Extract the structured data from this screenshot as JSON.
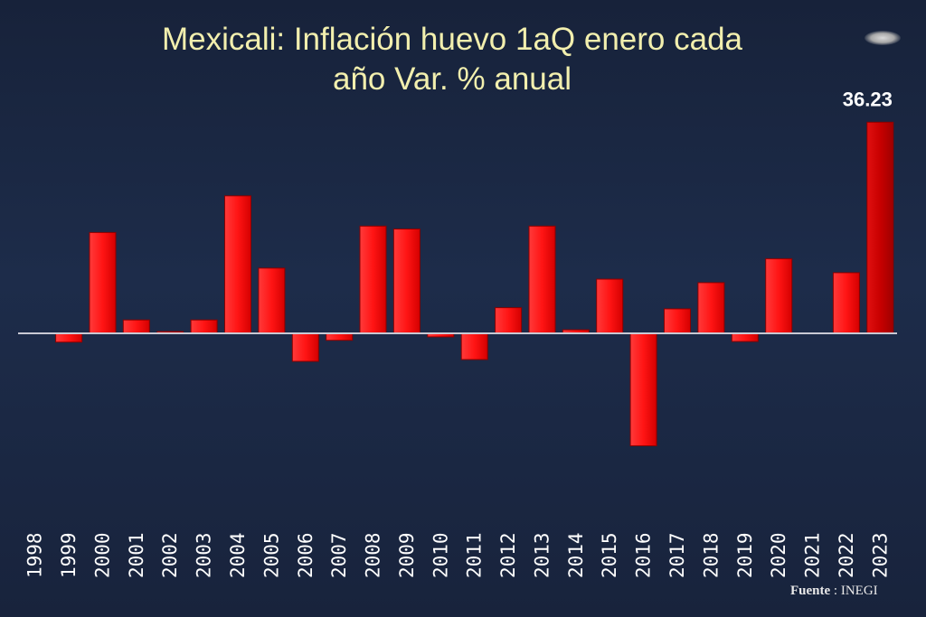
{
  "chart_data": {
    "type": "bar",
    "title": "Mexicali: Inflación huevo 1aQ enero cada año Var. % anual",
    "title_lines": [
      "Mexicali: Inflación huevo 1aQ enero cada",
      "año Var. % anual"
    ],
    "categories": [
      "1998",
      "1999",
      "2000",
      "2001",
      "2002",
      "2003",
      "2004",
      "2005",
      "2006",
      "2007",
      "2008",
      "2009",
      "2010",
      "2011",
      "2012",
      "2013",
      "2014",
      "2015",
      "2016",
      "2017",
      "2018",
      "2019",
      "2020",
      "2021",
      "2022",
      "2023"
    ],
    "values": [
      0,
      -1.5,
      17.3,
      2.3,
      0.3,
      2.3,
      23.6,
      11.2,
      -4.8,
      -1.2,
      18.4,
      17.9,
      -0.6,
      -4.5,
      4.4,
      18.4,
      0.6,
      9.3,
      -19.3,
      4.2,
      8.7,
      -1.4,
      12.8,
      0,
      10.4,
      36.23
    ],
    "highlight_index": 25,
    "data_labels": [
      {
        "index": 25,
        "text": "36.23"
      }
    ],
    "xlabel": "",
    "ylabel": "",
    "ylim": [
      -30,
      40
    ],
    "grid": false,
    "colors": {
      "bar": "#ff1a1a",
      "bar_dark": "#c00000",
      "highlight": "#cc0000",
      "axis": "#c9c9d4"
    }
  },
  "source": {
    "label": "Fuente",
    "separator": " : ",
    "value": "INEGI"
  }
}
